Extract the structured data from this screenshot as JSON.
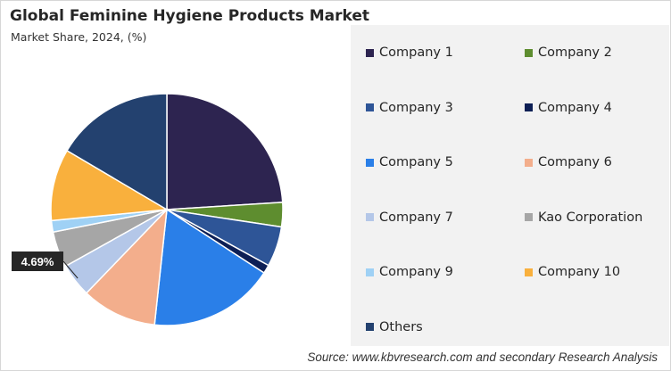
{
  "chart_data": {
    "type": "pie",
    "title": "Global Feminine Hygiene Products Market",
    "subtitle": "Market Share, 2024, (%)",
    "legend_position": "right",
    "slices": [
      {
        "label": "Company 1",
        "value": 24.0,
        "color": "#2d2450"
      },
      {
        "label": "Company 2",
        "value": 3.4,
        "color": "#5e8d2f"
      },
      {
        "label": "Company 3",
        "value": 5.6,
        "color": "#2e5597"
      },
      {
        "label": "Company 4",
        "value": 1.2,
        "color": "#0d1f55"
      },
      {
        "label": "Company 5",
        "value": 17.5,
        "color": "#2a7fe8"
      },
      {
        "label": "Company 6",
        "value": 10.5,
        "color": "#f3ae8c"
      },
      {
        "label": "Company 7",
        "value": 4.69,
        "color": "#b4c7e8"
      },
      {
        "label": "Kao Corporation",
        "value": 5.0,
        "color": "#a6a6a6"
      },
      {
        "label": "Company 9",
        "value": 1.6,
        "color": "#9fd1f5"
      },
      {
        "label": "Company 10",
        "value": 10.0,
        "color": "#f9b03d"
      },
      {
        "label": "Others",
        "value": 16.51,
        "color": "#23416f"
      }
    ],
    "data_label": {
      "label": "Company 7",
      "text": "4.69%"
    }
  },
  "source": "Source: www.kbvresearch.com and secondary Research Analysis"
}
